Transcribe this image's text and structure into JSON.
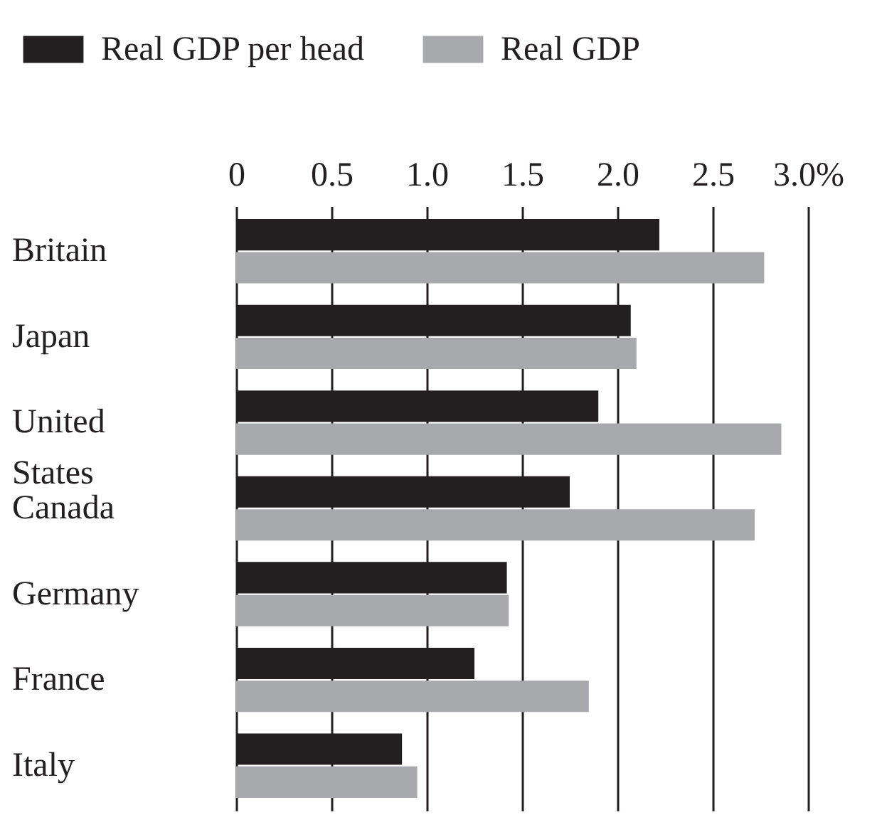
{
  "chart_data": {
    "type": "bar",
    "orientation": "horizontal",
    "categories": [
      "Britain",
      "Japan",
      "United States",
      "Canada",
      "Germany",
      "France",
      "Italy"
    ],
    "series": [
      {
        "name": "Real GDP per head",
        "color": "#231f20",
        "values": [
          2.22,
          2.07,
          1.9,
          1.75,
          1.42,
          1.25,
          0.87
        ]
      },
      {
        "name": "Real GDP",
        "color": "#a7a9ac",
        "values": [
          2.77,
          2.1,
          2.86,
          2.72,
          1.43,
          1.85,
          0.95
        ]
      }
    ],
    "xlim": [
      0,
      3
    ],
    "xticks": [
      0,
      0.5,
      {
        "value": 1,
        "label": "1.0"
      },
      1.5,
      {
        "value": 2,
        "label": "2.0"
      },
      2.5,
      {
        "value": 3,
        "label": "3.0%"
      }
    ],
    "grid": "x",
    "legend": "top left"
  }
}
